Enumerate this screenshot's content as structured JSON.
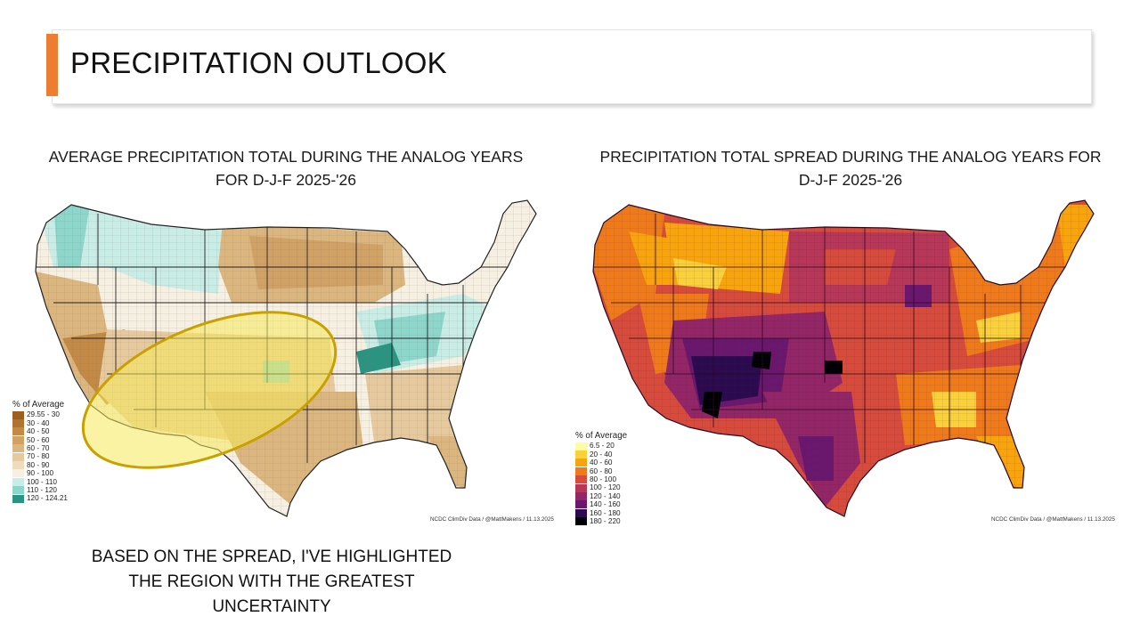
{
  "page": {
    "title": "PRECIPITATION OUTLOOK"
  },
  "colors": {
    "accent": "#ed7d31",
    "highlight_fill": "#f5ea5a",
    "highlight_stroke": "#c8a000"
  },
  "left_map": {
    "title": "AVERAGE PRECIPITATION TOTAL DURING THE ANALOG YEARS FOR D-J-F 2025-'26",
    "legend_title": "% of Average",
    "legend": [
      {
        "label": "29.55 - 30",
        "color": "#9c5f1e"
      },
      {
        "label": "30 - 40",
        "color": "#b07330"
      },
      {
        "label": "40 - 50",
        "color": "#c28a45"
      },
      {
        "label": "50 - 60",
        "color": "#d1a265"
      },
      {
        "label": "60 - 70",
        "color": "#dcb67f"
      },
      {
        "label": "70 - 80",
        "color": "#e6ca9e"
      },
      {
        "label": "80 - 90",
        "color": "#efdcbc"
      },
      {
        "label": "90 - 100",
        "color": "#f6f0e3"
      },
      {
        "label": "100 - 110",
        "color": "#c8ece6"
      },
      {
        "label": "110 - 120",
        "color": "#8dd6cc"
      },
      {
        "label": "120 - 124.21",
        "color": "#2a9482"
      }
    ],
    "credit": "NCDC ClimDiv Data / @MattMakens / 11.13.2025"
  },
  "right_map": {
    "title": "PRECIPITATION TOTAL SPREAD DURING THE ANALOG YEARS FOR D-J-F 2025-'26",
    "legend_title": "% of Average",
    "legend": [
      {
        "label": "6.5 - 20",
        "color": "#fcfca4"
      },
      {
        "label": "20 - 40",
        "color": "#f9d13a"
      },
      {
        "label": "40 - 60",
        "color": "#f8a40c"
      },
      {
        "label": "60 - 80",
        "color": "#ef7a1a"
      },
      {
        "label": "80 - 100",
        "color": "#d64b3b"
      },
      {
        "label": "100 - 120",
        "color": "#b73759"
      },
      {
        "label": "120 - 140",
        "color": "#932667"
      },
      {
        "label": "140 - 160",
        "color": "#6a176e"
      },
      {
        "label": "160 - 180",
        "color": "#2b0b4f"
      },
      {
        "label": "180 - 220",
        "color": "#000004"
      }
    ],
    "credit": "NCDC ClimDiv Data / @MattMakens / 11.13.2025"
  },
  "caption": "BASED ON THE SPREAD, I'VE HIGHLIGHTED THE REGION WITH THE GREATEST UNCERTAINTY"
}
